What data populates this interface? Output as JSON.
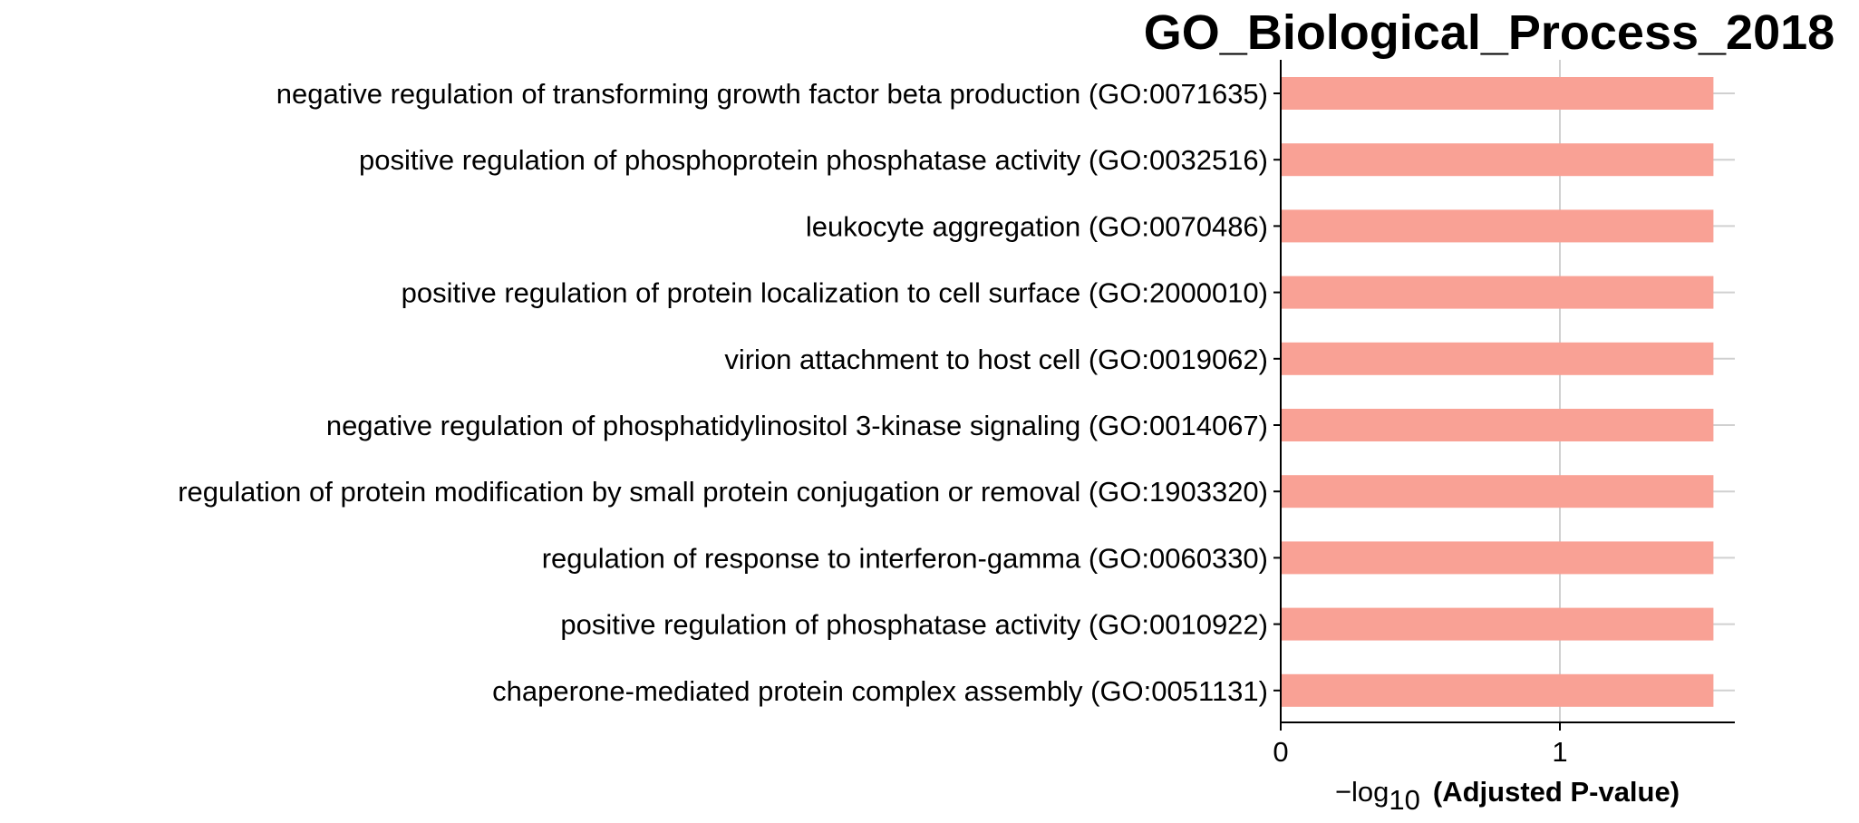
{
  "chart_data": {
    "type": "bar",
    "orientation": "horizontal",
    "title": "GO_Biological_Process_2018",
    "categories": [
      "negative regulation of transforming growth factor beta production (GO:0071635)",
      "positive regulation of phosphoprotein phosphatase activity (GO:0032516)",
      "leukocyte aggregation (GO:0070486)",
      "positive regulation of protein localization to cell surface (GO:2000010)",
      "virion attachment to host cell (GO:0019062)",
      "negative regulation of phosphatidylinositol 3-kinase signaling (GO:0014067)",
      "regulation of protein modification by small protein conjugation or removal (GO:1903320)",
      "regulation of response to interferon-gamma (GO:0060330)",
      "positive regulation of phosphatase activity (GO:0010922)",
      "chaperone-mediated protein complex assembly (GO:0051131)"
    ],
    "values": [
      1.55,
      1.55,
      1.55,
      1.55,
      1.55,
      1.55,
      1.55,
      1.55,
      1.55,
      1.55
    ],
    "xlabel_math": "−log",
    "xlabel_sub": "10",
    "xlabel_text": "(Adjusted P-value)",
    "xticks": [
      "0",
      "1"
    ],
    "xlim": [
      0,
      1.62
    ],
    "grid": "vertical and horizontal",
    "bar_color": "#f9a195",
    "grid_color": "#d0d0d0"
  }
}
